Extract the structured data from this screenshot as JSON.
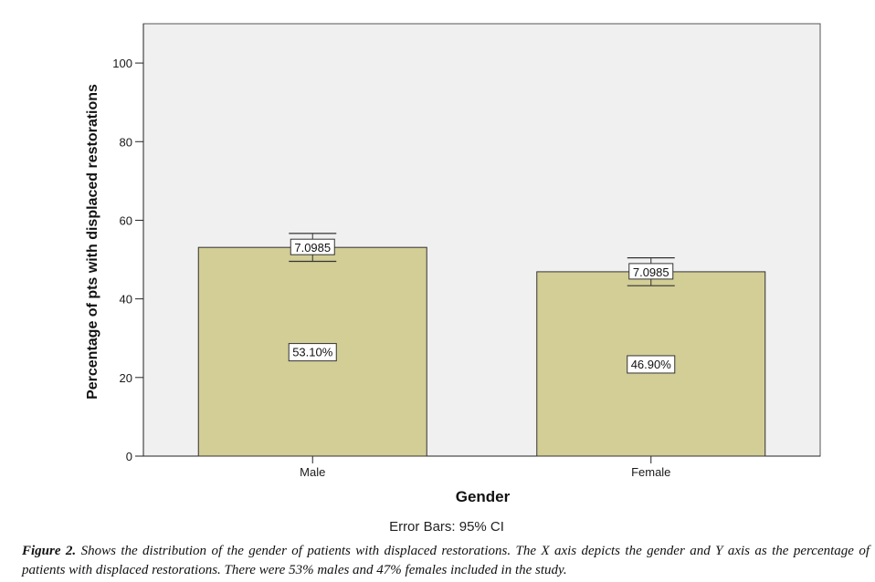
{
  "chart_data": {
    "type": "bar",
    "categories": [
      "Male",
      "Female"
    ],
    "values": [
      53.1,
      46.9
    ],
    "value_labels": [
      "53.10%",
      "46.90%"
    ],
    "error_bars": {
      "type": "95% CI",
      "half_width": [
        3.55,
        3.55
      ],
      "labels": [
        "7.0985",
        "7.0985"
      ]
    },
    "xlabel": "Gender",
    "ylabel": "Percentage of pts with displaced restorations",
    "ylim": [
      0,
      110
    ],
    "yticks": [
      0,
      20,
      40,
      60,
      80,
      100
    ],
    "grid": false,
    "bar_color": "#d3cd96",
    "plot_background": "#f0f0f0"
  },
  "error_bars_note": "Error Bars: 95% CI",
  "caption": {
    "label": "Figure 2.",
    "text": "Shows the distribution of the gender of patients with displaced restorations. The X axis depicts the gender and Y axis as the percentage of patients with displaced restorations. There were 53% males and 47% females included in the study."
  }
}
